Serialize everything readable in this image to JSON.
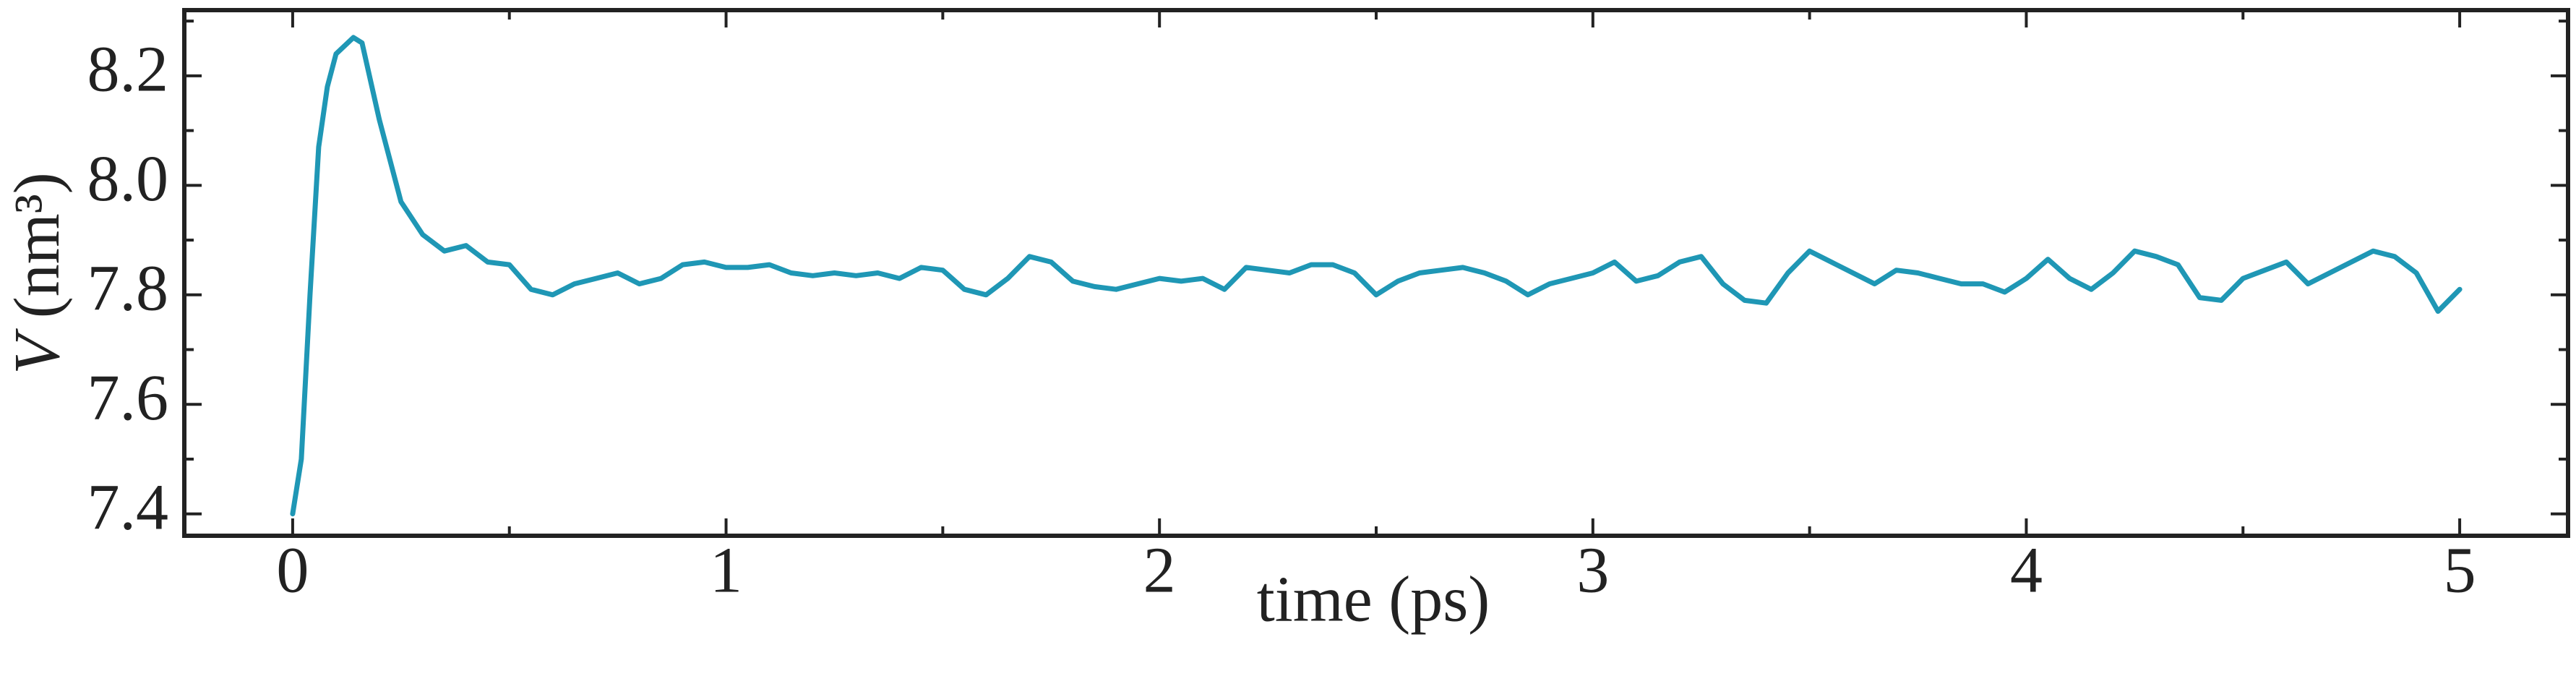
{
  "chart_data": {
    "type": "line",
    "xlabel": "time (ps)",
    "ylabel": {
      "symbol": "V",
      "unit": "(nm³)"
    },
    "x": [
      0,
      0.02,
      0.04,
      0.06,
      0.08,
      0.1,
      0.14,
      0.16,
      0.2,
      0.25,
      0.3,
      0.35,
      0.4,
      0.45,
      0.5,
      0.55,
      0.6,
      0.65,
      0.7,
      0.75,
      0.8,
      0.85,
      0.9,
      0.95,
      1.0,
      1.05,
      1.1,
      1.15,
      1.2,
      1.25,
      1.3,
      1.35,
      1.4,
      1.45,
      1.5,
      1.55,
      1.6,
      1.65,
      1.7,
      1.75,
      1.8,
      1.85,
      1.9,
      1.95,
      2.0,
      2.05,
      2.1,
      2.15,
      2.2,
      2.25,
      2.3,
      2.35,
      2.4,
      2.45,
      2.5,
      2.55,
      2.6,
      2.65,
      2.7,
      2.75,
      2.8,
      2.85,
      2.9,
      2.95,
      3.0,
      3.05,
      3.1,
      3.15,
      3.2,
      3.25,
      3.3,
      3.35,
      3.4,
      3.45,
      3.5,
      3.55,
      3.6,
      3.65,
      3.7,
      3.75,
      3.8,
      3.85,
      3.9,
      3.95,
      4.0,
      4.05,
      4.1,
      4.15,
      4.2,
      4.25,
      4.3,
      4.35,
      4.4,
      4.45,
      4.5,
      4.55,
      4.6,
      4.65,
      4.7,
      4.75,
      4.8,
      4.85,
      4.9,
      4.95,
      5.0
    ],
    "series": [
      {
        "color": "#1f97b5",
        "values": [
          7.4,
          7.5,
          7.8,
          8.07,
          8.18,
          8.24,
          8.27,
          8.26,
          8.12,
          7.97,
          7.91,
          7.88,
          7.89,
          7.86,
          7.855,
          7.81,
          7.8,
          7.82,
          7.83,
          7.84,
          7.82,
          7.83,
          7.855,
          7.86,
          7.85,
          7.85,
          7.855,
          7.84,
          7.835,
          7.84,
          7.835,
          7.84,
          7.83,
          7.85,
          7.845,
          7.81,
          7.8,
          7.83,
          7.87,
          7.86,
          7.825,
          7.815,
          7.81,
          7.82,
          7.83,
          7.825,
          7.83,
          7.81,
          7.85,
          7.845,
          7.84,
          7.855,
          7.855,
          7.84,
          7.8,
          7.825,
          7.84,
          7.845,
          7.85,
          7.84,
          7.825,
          7.8,
          7.82,
          7.83,
          7.84,
          7.86,
          7.825,
          7.835,
          7.86,
          7.87,
          7.82,
          7.79,
          7.785,
          7.84,
          7.88,
          7.86,
          7.84,
          7.82,
          7.845,
          7.84,
          7.83,
          7.82,
          7.82,
          7.805,
          7.83,
          7.865,
          7.83,
          7.81,
          7.84,
          7.88,
          7.87,
          7.855,
          7.795,
          7.79,
          7.83,
          7.845,
          7.86,
          7.82,
          7.84,
          7.86,
          7.88,
          7.87,
          7.84,
          7.77,
          7.81
        ]
      }
    ],
    "xlim": [
      -0.25,
      5.25
    ],
    "ylim": [
      7.36,
      8.32
    ],
    "xticks": [
      0,
      1,
      2,
      3,
      4,
      5
    ],
    "xminorticks": [
      0.5,
      1.5,
      2.5,
      3.5,
      4.5
    ],
    "yticks": [
      7.4,
      7.6,
      7.8,
      {
        "value": 8,
        "label": "8.0"
      },
      8.2
    ],
    "yminorticks": [
      7.5,
      7.7,
      7.9,
      8.1,
      8.3
    ]
  }
}
